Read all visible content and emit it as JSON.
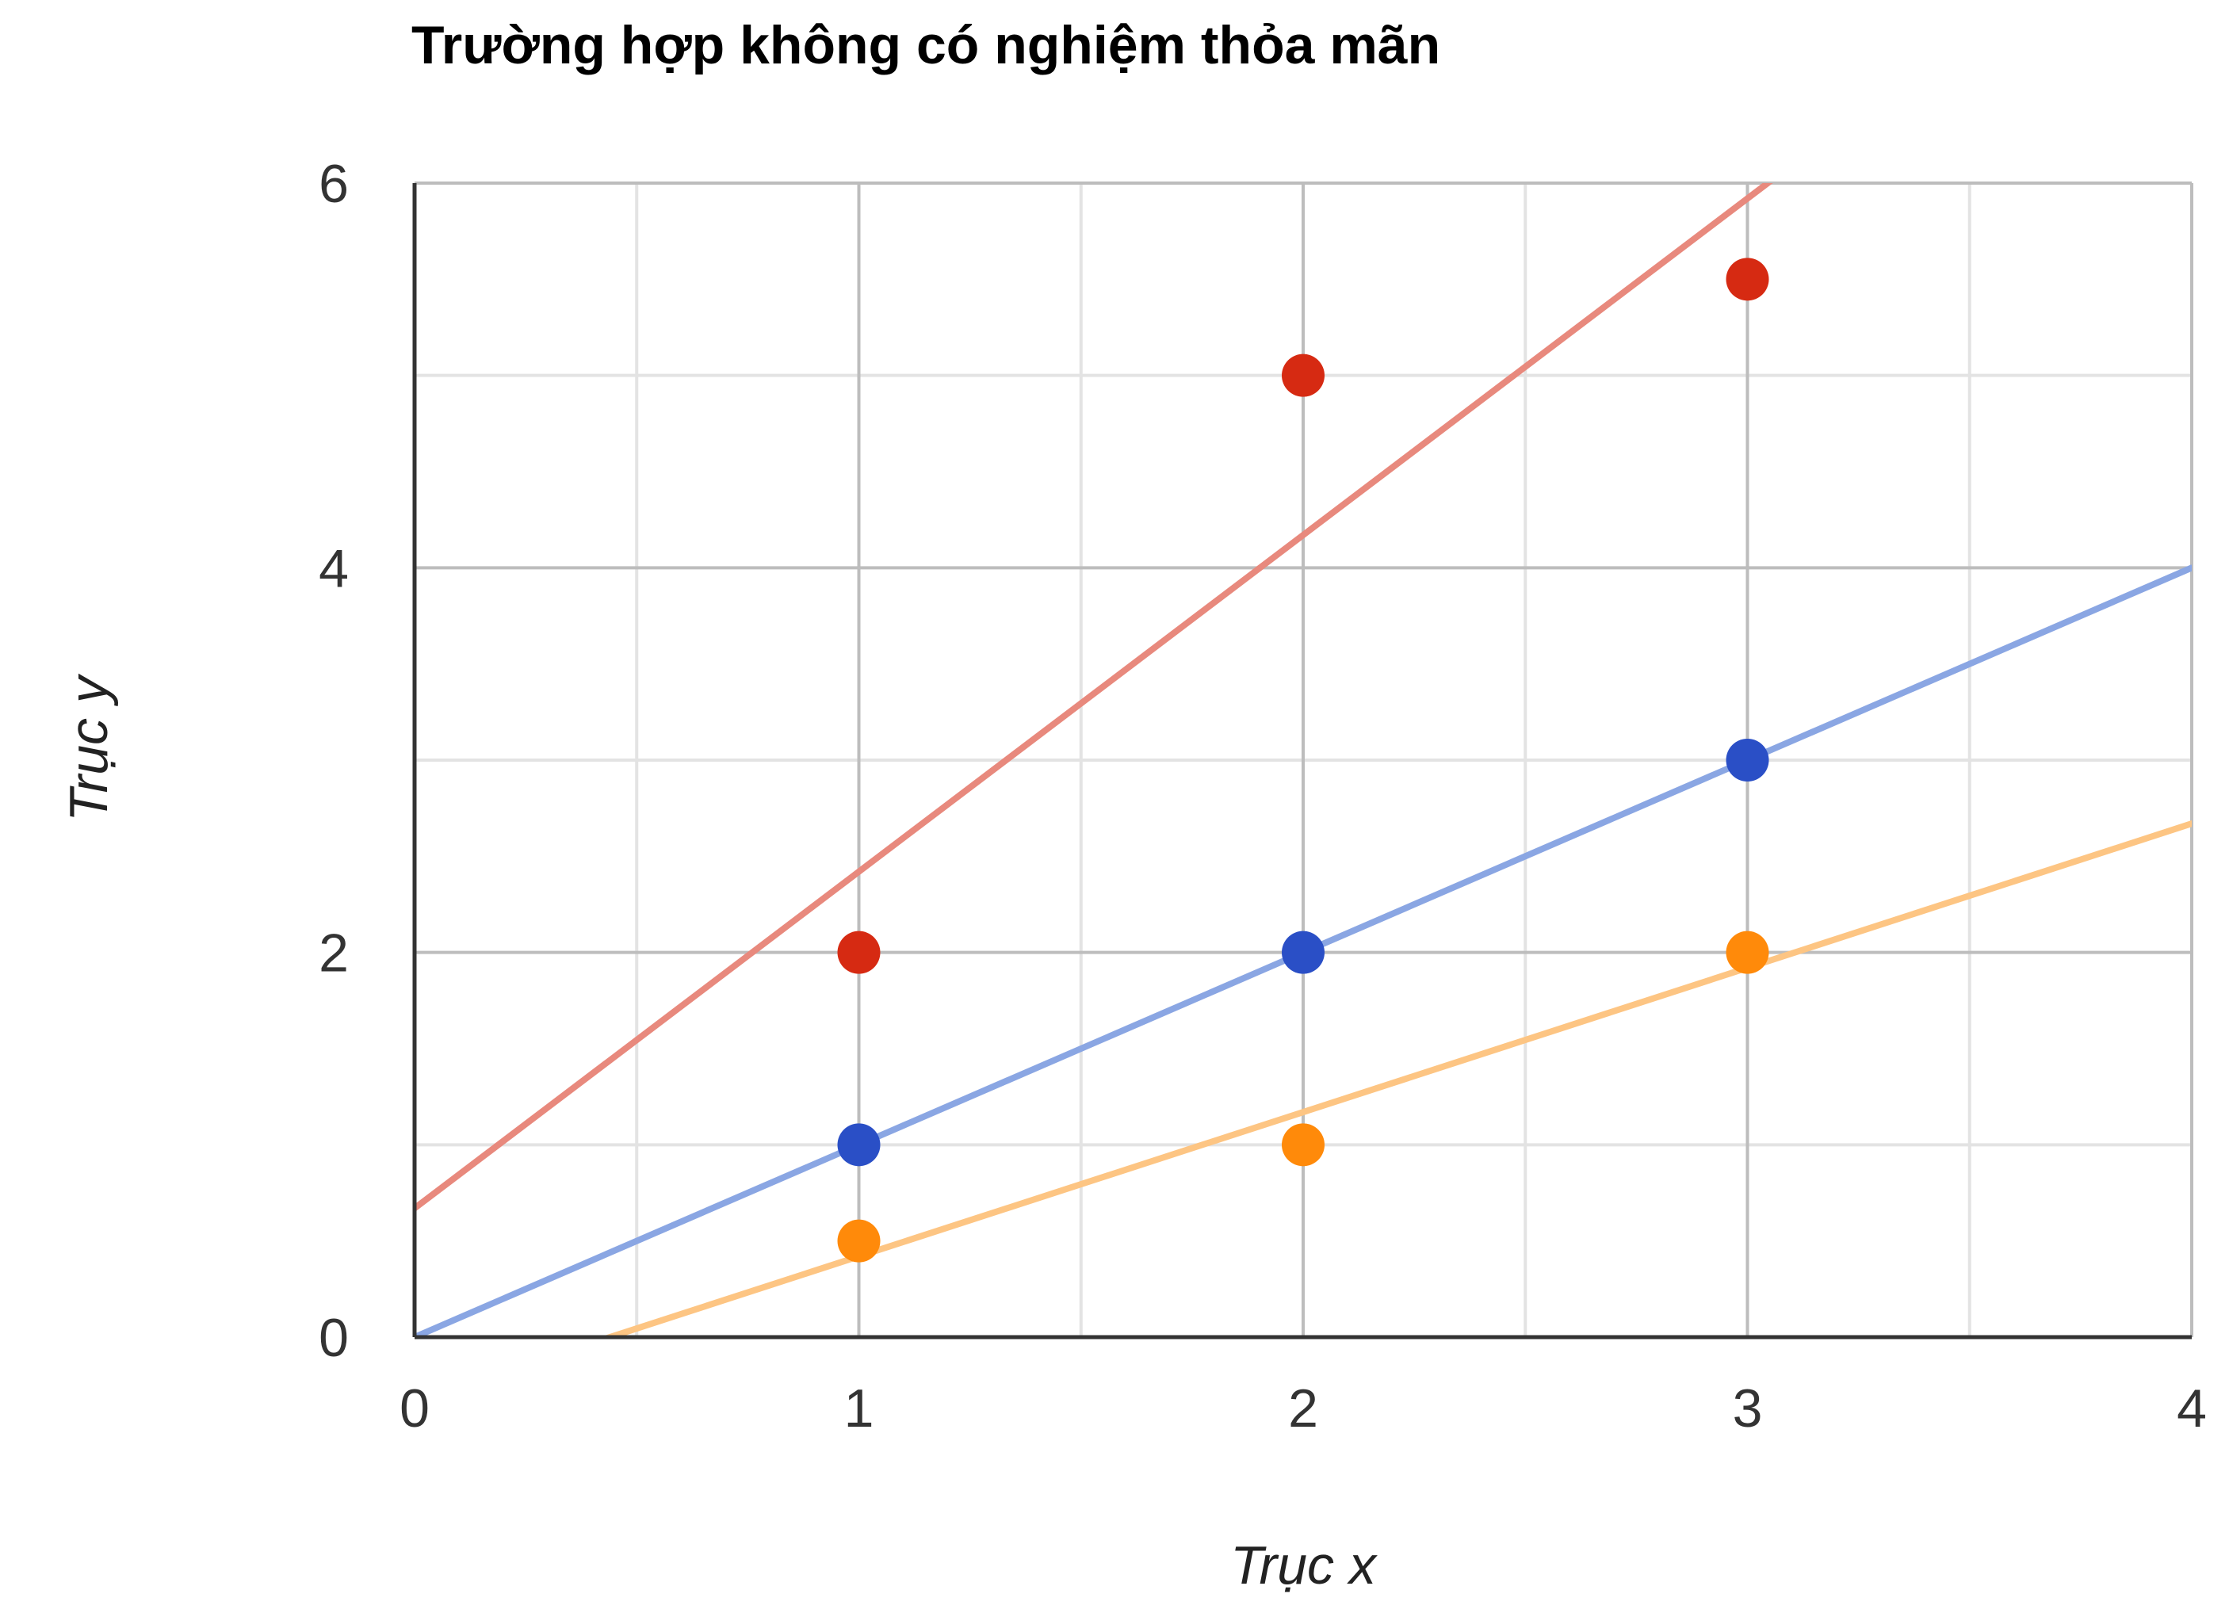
{
  "chart_data": {
    "type": "scatter",
    "title": "Trường hợp không có nghiệm thỏa mãn",
    "xlabel": "Trục x",
    "ylabel": "Trục y",
    "xlim": [
      0,
      4
    ],
    "ylim": [
      0,
      6
    ],
    "x_ticks": [
      "0",
      "1",
      "2",
      "3",
      "4"
    ],
    "y_ticks": [
      "0",
      "2",
      "4",
      "6"
    ],
    "grid": true,
    "legend": "none",
    "series": [
      {
        "color": "#d62a12",
        "points": [
          [
            1,
            2
          ],
          [
            2,
            5
          ],
          [
            3,
            5.5
          ]
        ],
        "trendline": {
          "type": "linear",
          "slope": 1.75,
          "intercept": 0.67,
          "color": "#e8897d"
        }
      },
      {
        "color": "#2a4fc6",
        "points": [
          [
            1,
            1
          ],
          [
            2,
            2
          ],
          [
            3,
            3
          ]
        ],
        "trendline": {
          "type": "linear",
          "slope": 1.0,
          "intercept": 0.0,
          "color": "#8aa6e3"
        }
      },
      {
        "color": "#ff8a0a",
        "points": [
          [
            1,
            0.5
          ],
          [
            2,
            1
          ],
          [
            3,
            2
          ]
        ],
        "trendline": {
          "type": "linear",
          "slope": 0.75,
          "intercept": -0.33,
          "color": "#fdc583"
        }
      }
    ]
  }
}
